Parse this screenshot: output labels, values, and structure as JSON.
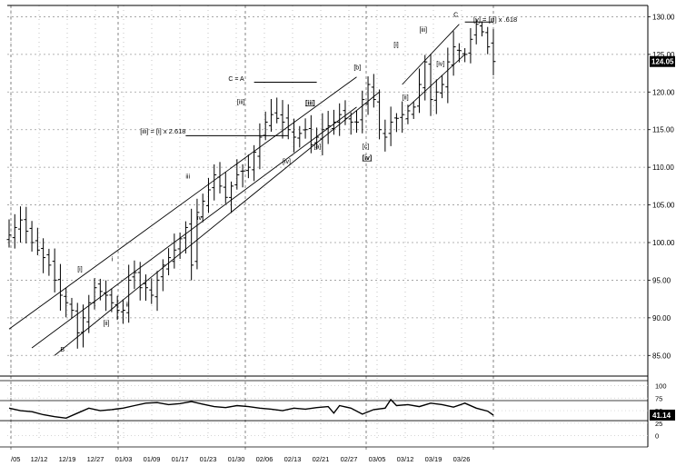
{
  "chart_data": {
    "type": "bar",
    "subtype": "ohlc",
    "price_axis": {
      "ticks": [
        85,
        90,
        95,
        100,
        105,
        110,
        115,
        120,
        125,
        130
      ],
      "tick_labels": [
        "85.00",
        "90.00",
        "95.00",
        "100.00",
        "105.00",
        "110.00",
        "115.00",
        "120.00",
        "125.00",
        "130.00"
      ],
      "ylim": [
        82.5,
        131.5
      ],
      "last_price": "124.05"
    },
    "indicator_axis": {
      "ticks": [
        0,
        25,
        50,
        75,
        100
      ],
      "ylim": [
        -8,
        110
      ],
      "reference_lines": [
        30,
        70
      ],
      "last_value": "41.14"
    },
    "date_labels": [
      "/05",
      "12/12",
      "12/19",
      "12/27",
      "01/03",
      "01/09",
      "01/17",
      "01/23",
      "01/30",
      "02/06",
      "02/13",
      "02/21",
      "02/27",
      "03/05",
      "03/12",
      "03/19",
      "03/26"
    ],
    "vertical_markers": [
      "12/02",
      "01/02",
      "02/01",
      "03/01",
      "04/01"
    ],
    "close_path": [
      [
        0,
        101
      ],
      [
        2,
        103
      ],
      [
        4,
        100
      ],
      [
        7,
        97
      ],
      [
        9,
        93
      ],
      [
        11,
        91
      ],
      [
        12,
        88
      ],
      [
        13,
        90
      ],
      [
        15,
        94
      ],
      [
        17,
        93
      ],
      [
        19,
        91
      ],
      [
        20,
        91
      ],
      [
        21,
        95
      ],
      [
        22,
        96
      ],
      [
        23,
        94
      ],
      [
        24,
        94
      ],
      [
        25,
        93
      ],
      [
        27,
        97
      ],
      [
        29,
        99
      ],
      [
        31,
        102
      ],
      [
        32,
        97
      ],
      [
        33,
        104
      ],
      [
        35,
        107
      ],
      [
        36,
        109
      ],
      [
        38,
        106
      ],
      [
        40,
        109
      ],
      [
        42,
        110
      ],
      [
        43,
        112
      ],
      [
        45,
        116
      ],
      [
        46,
        117
      ],
      [
        48,
        116
      ],
      [
        50,
        114
      ],
      [
        52,
        115
      ],
      [
        53,
        113
      ],
      [
        55,
        115
      ],
      [
        57,
        116
      ],
      [
        58,
        117
      ],
      [
        60,
        116
      ],
      [
        61,
        116
      ],
      [
        62,
        119
      ],
      [
        63,
        121
      ],
      [
        64,
        119
      ],
      [
        65,
        115
      ],
      [
        66,
        114
      ],
      [
        67,
        116
      ],
      [
        69,
        117
      ],
      [
        71,
        118
      ],
      [
        72,
        121
      ],
      [
        73,
        124
      ],
      [
        74,
        119
      ],
      [
        76,
        121
      ],
      [
        77,
        124
      ],
      [
        78,
        126
      ],
      [
        80,
        125
      ],
      [
        81,
        127
      ],
      [
        82,
        129
      ],
      [
        83,
        128
      ],
      [
        84,
        126
      ],
      [
        85,
        124.05
      ]
    ],
    "channels": [
      {
        "name": "upper",
        "from": [
          0,
          88.5
        ],
        "to": [
          61,
          122
        ]
      },
      {
        "name": "mid",
        "from": [
          4,
          86
        ],
        "to": [
          61,
          118
        ]
      },
      {
        "name": "lower",
        "from": [
          8,
          85
        ],
        "to": [
          65,
          120
        ]
      },
      {
        "name": "wave-top-upper",
        "from": [
          69,
          121
        ],
        "to": [
          79,
          129
        ]
      },
      {
        "name": "wave-top-lower",
        "from": [
          70,
          118
        ],
        "to": [
          80,
          125
        ]
      }
    ],
    "target_lines": [
      {
        "label": "C = A",
        "y": 121.3,
        "x_from": 43,
        "x_to": 54
      },
      {
        "label": "[iii] = [i] x 2.618",
        "y": 114.2,
        "x_from": 31,
        "x_to": 49
      },
      {
        "label": "[v] = [iii] x .618",
        "y": 129.3,
        "x_from": 80,
        "x_to": 85
      }
    ],
    "wave_labels": [
      {
        "text": "B",
        "x": 9,
        "y": 85.5,
        "boxed": false
      },
      {
        "text": "[i]",
        "x": 12,
        "y": 96.2,
        "boxed": false
      },
      {
        "text": "[ii]",
        "x": 16.5,
        "y": 89,
        "boxed": false
      },
      {
        "text": "i",
        "x": 18,
        "y": 97.5,
        "boxed": false
      },
      {
        "text": "ii",
        "x": 20.5,
        "y": 91.5,
        "boxed": false
      },
      {
        "text": "iii",
        "x": 31,
        "y": 108.5,
        "boxed": false
      },
      {
        "text": "iv",
        "x": 33,
        "y": 103,
        "boxed": false
      },
      {
        "text": "C = A",
        "x": 38.5,
        "y": 121.5,
        "boxed": false
      },
      {
        "text": "[iii]",
        "x": 40,
        "y": 118.4,
        "boxed": false
      },
      {
        "text": "[iii] = [i] x 2.618",
        "x": 23,
        "y": 114.5,
        "boxed": false
      },
      {
        "text": "[iv]",
        "x": 48,
        "y": 110.5,
        "boxed": false
      },
      {
        "text": "[a]",
        "x": 53.5,
        "y": 112.5,
        "boxed": false
      },
      {
        "text": "[iii]",
        "x": 52,
        "y": 118.3,
        "boxed": true
      },
      {
        "text": "[b]",
        "x": 60.5,
        "y": 123,
        "boxed": false
      },
      {
        "text": "[c]",
        "x": 62,
        "y": 112.5,
        "boxed": false
      },
      {
        "text": "[iv]",
        "x": 62,
        "y": 111,
        "boxed": true
      },
      {
        "text": "[i]",
        "x": 67.5,
        "y": 126,
        "boxed": false
      },
      {
        "text": "[ii]",
        "x": 69,
        "y": 119,
        "boxed": false
      },
      {
        "text": "[iii]",
        "x": 72,
        "y": 128,
        "boxed": false
      },
      {
        "text": "[iv]",
        "x": 75,
        "y": 123.5,
        "boxed": false
      },
      {
        "text": "C",
        "x": 78,
        "y": 130,
        "boxed": false
      },
      {
        "text": "[v] = [iii] x .618",
        "x": 81.5,
        "y": 129.3,
        "boxed": false
      }
    ],
    "indicator_path": [
      [
        0,
        55
      ],
      [
        2,
        50
      ],
      [
        4,
        48
      ],
      [
        6,
        42
      ],
      [
        8,
        38
      ],
      [
        10,
        35
      ],
      [
        12,
        45
      ],
      [
        14,
        55
      ],
      [
        16,
        50
      ],
      [
        18,
        52
      ],
      [
        20,
        55
      ],
      [
        22,
        60
      ],
      [
        24,
        65
      ],
      [
        26,
        66
      ],
      [
        28,
        62
      ],
      [
        30,
        64
      ],
      [
        32,
        68
      ],
      [
        34,
        63
      ],
      [
        36,
        58
      ],
      [
        38,
        56
      ],
      [
        40,
        60
      ],
      [
        42,
        58
      ],
      [
        44,
        55
      ],
      [
        46,
        53
      ],
      [
        48,
        50
      ],
      [
        50,
        55
      ],
      [
        52,
        53
      ],
      [
        54,
        56
      ],
      [
        56,
        58
      ],
      [
        57,
        45
      ],
      [
        58,
        60
      ],
      [
        60,
        55
      ],
      [
        62,
        43
      ],
      [
        64,
        52
      ],
      [
        66,
        55
      ],
      [
        67,
        72
      ],
      [
        68,
        60
      ],
      [
        70,
        62
      ],
      [
        72,
        58
      ],
      [
        74,
        65
      ],
      [
        76,
        62
      ],
      [
        78,
        57
      ],
      [
        80,
        65
      ],
      [
        82,
        55
      ],
      [
        84,
        49
      ],
      [
        85,
        41
      ]
    ]
  }
}
